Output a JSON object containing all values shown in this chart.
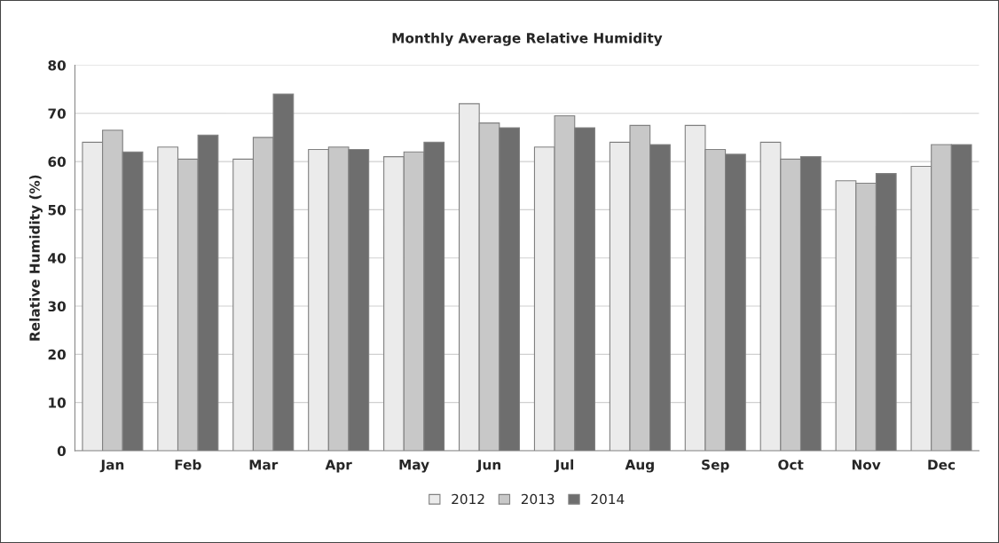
{
  "chart_data": {
    "type": "bar",
    "title": "Monthly Average Relative Humidity",
    "ylabel": "Relative Humidity (%)",
    "categories": [
      "Jan",
      "Feb",
      "Mar",
      "Apr",
      "May",
      "Jun",
      "Jul",
      "Aug",
      "Sep",
      "Oct",
      "Nov",
      "Dec"
    ],
    "series": [
      {
        "name": "2012",
        "color": "#ebebeb",
        "values": [
          64,
          63,
          60.5,
          62.5,
          61,
          72,
          63,
          64,
          67.5,
          64,
          56,
          59
        ]
      },
      {
        "name": "2013",
        "color": "#c8c8c8",
        "values": [
          66.5,
          60.5,
          65,
          63,
          62,
          68,
          69.5,
          67.5,
          62.5,
          60.5,
          55.5,
          63.5
        ]
      },
      {
        "name": "2014",
        "color": "#6e6e6e",
        "values": [
          62,
          65.5,
          74,
          62.5,
          64,
          67,
          67,
          63.5,
          61.5,
          61,
          57.5,
          63.5
        ]
      }
    ],
    "ylim": [
      0,
      80
    ],
    "yticks": [
      0,
      10,
      20,
      30,
      40,
      50,
      60,
      70,
      80
    ],
    "grid": "y",
    "legend": "bottom"
  }
}
